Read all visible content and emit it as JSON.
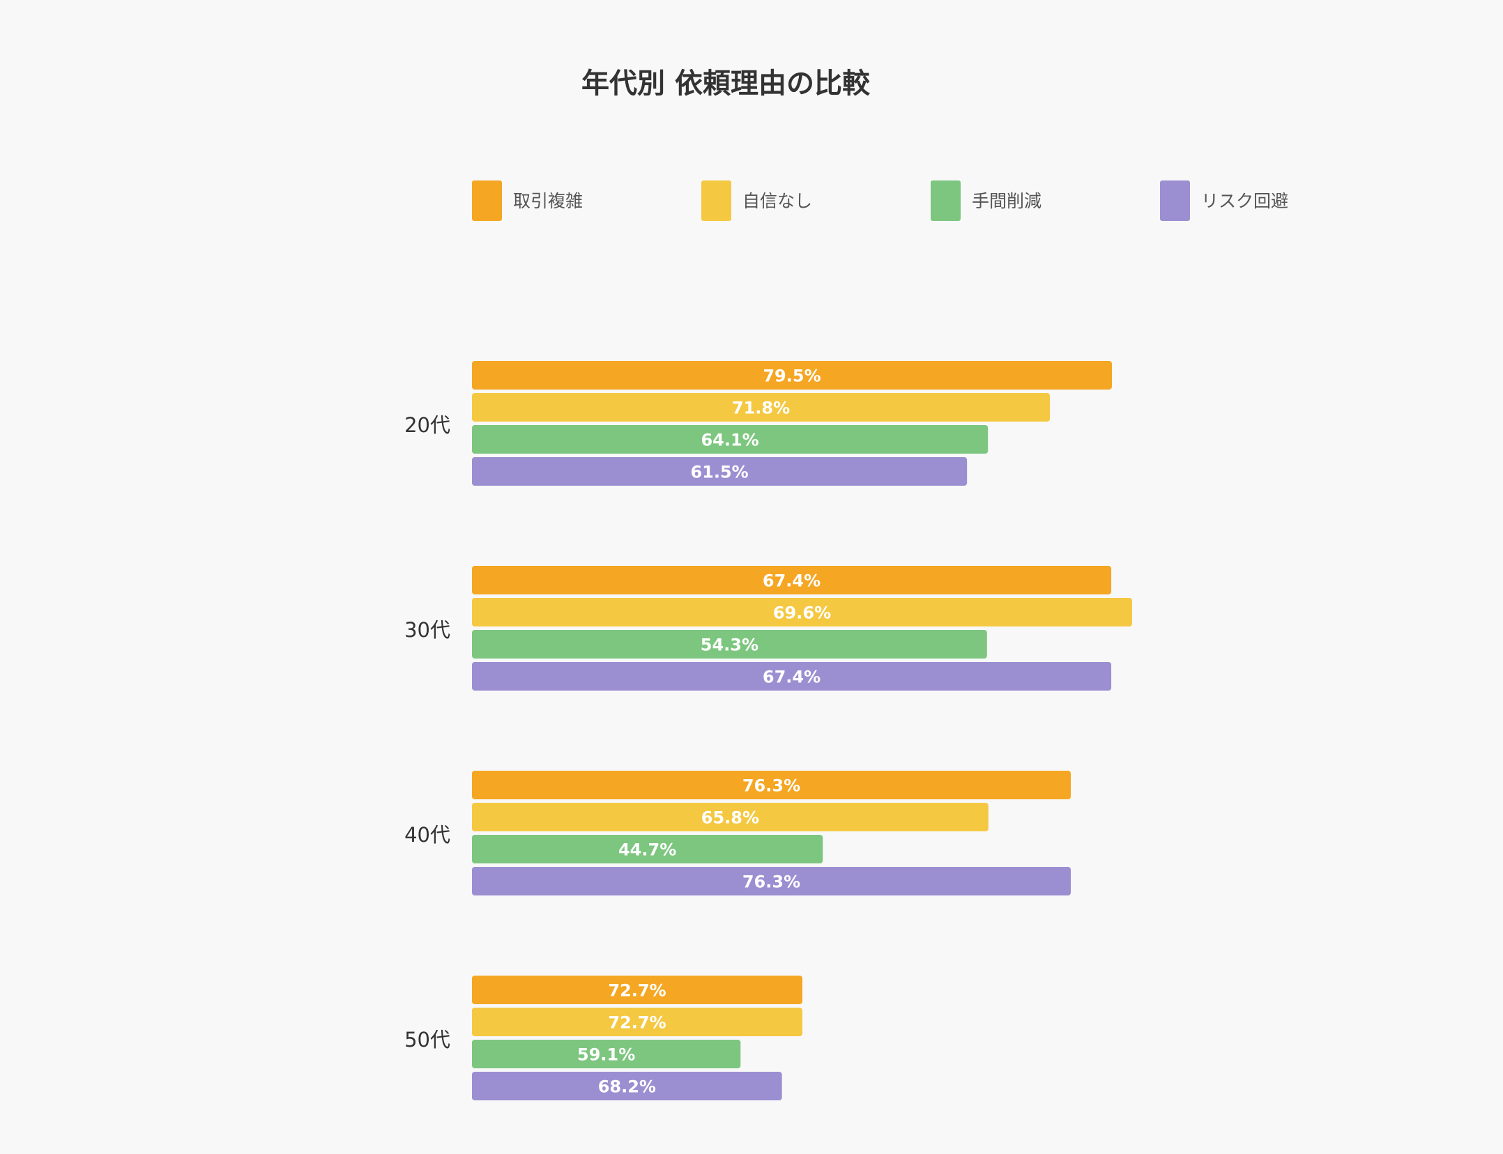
{
  "chart_data": {
    "type": "bar",
    "orientation": "horizontal",
    "title": "年代別 依頼理由の比較",
    "categories": [
      "20代",
      "30代",
      "40代",
      "50代"
    ],
    "series": [
      {
        "name": "取引複雑",
        "color": "#f5a623",
        "values": [
          79.5,
          67.4,
          76.3,
          72.7
        ],
        "labels": [
          "79.5%",
          "67.4%",
          "76.3%",
          "72.7%"
        ]
      },
      {
        "name": "自信なし",
        "color": "#f5c842",
        "values": [
          71.8,
          69.6,
          65.8,
          72.7
        ],
        "labels": [
          "71.8%",
          "69.6%",
          "65.8%",
          "72.7%"
        ]
      },
      {
        "name": "手間削減",
        "color": "#7dc67f",
        "values": [
          64.1,
          54.3,
          44.7,
          59.1
        ],
        "labels": [
          "64.1%",
          "54.3%",
          "44.7%",
          "59.1%"
        ]
      },
      {
        "name": "リスク回避",
        "color": "#9b8fd1",
        "values": [
          61.5,
          67.4,
          76.3,
          68.2
        ],
        "labels": [
          "61.5%",
          "67.4%",
          "76.3%",
          "68.2%"
        ]
      }
    ],
    "legend_position": "top",
    "grid": false,
    "axes_visible": false,
    "data_labels": "inside-center"
  }
}
